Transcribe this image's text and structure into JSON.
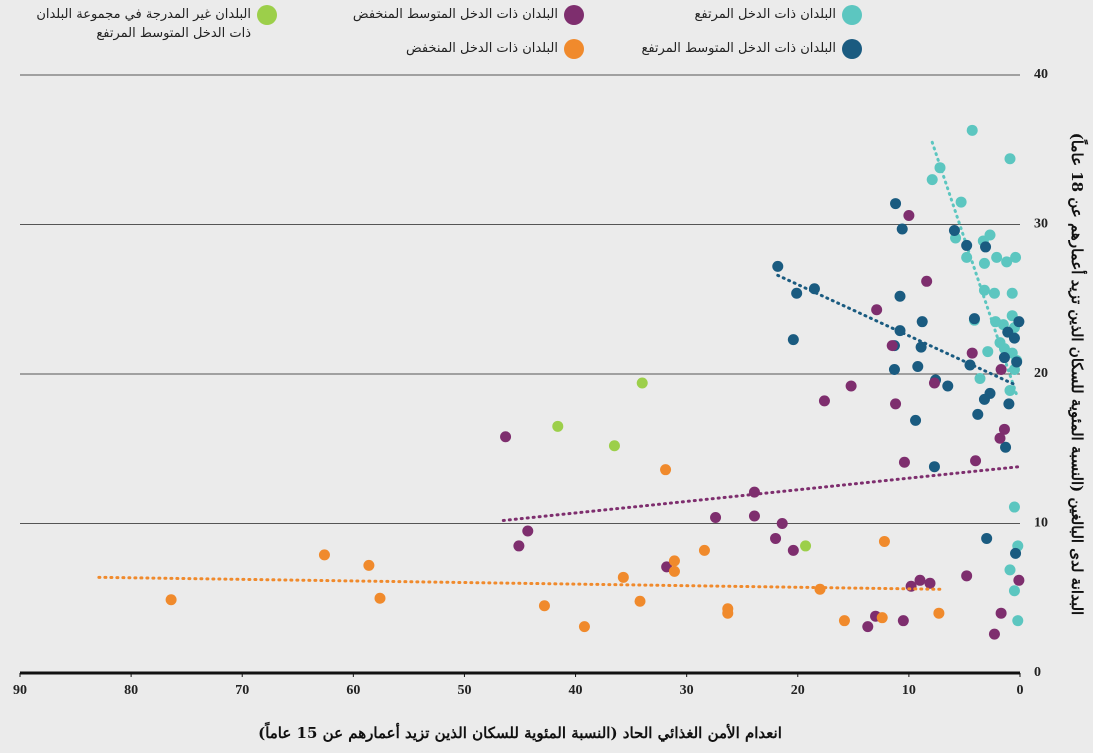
{
  "chart_data": {
    "type": "scatter",
    "xlabel": "انعدام الأمن الغذائي الحاد (النسبة المئوية للسكان الذين تزيد أعمارهم عن 15 عاماً)",
    "ylabel": "البدانة لدى البالغين (النسبة المئوية للسكان الذين تزيد أعمارهم عن 18 عاماً)",
    "xlim": [
      90,
      0
    ],
    "xticks": [
      90,
      80,
      70,
      60,
      50,
      40,
      30,
      20,
      10,
      0
    ],
    "ylim": [
      0,
      40
    ],
    "yticks": [
      0,
      10,
      20,
      30,
      40
    ],
    "grid": true,
    "series": [
      {
        "name": "البلدان ذات الدخل المرتفع",
        "color": "#5cc6c0",
        "x": [
          4.3,
          0.9,
          7.2,
          7.9,
          5.3,
          5.8,
          2.7,
          3.3,
          1.2,
          2.1,
          0.4,
          3.2,
          4.8,
          3.2,
          2.3,
          0.7,
          0.7,
          4.1,
          2.2,
          1.5,
          0.5,
          1.8,
          1.4,
          0.7,
          0.3,
          2.9,
          0.5,
          3.6,
          0.9,
          0.5,
          0.2,
          0.9,
          0.5,
          0.2
        ],
        "y": [
          36.3,
          34.4,
          33.8,
          33.0,
          31.5,
          29.1,
          29.3,
          28.9,
          27.5,
          27.8,
          27.8,
          27.4,
          27.8,
          25.6,
          25.4,
          25.4,
          23.9,
          23.6,
          23.5,
          23.3,
          23.1,
          22.1,
          21.7,
          21.4,
          20.9,
          21.5,
          20.3,
          19.7,
          18.9,
          11.1,
          8.5,
          6.9,
          5.5,
          3.5
        ],
        "trend": {
          "x": [
            7.9,
            0.3
          ],
          "y": [
            35.5,
            18.6
          ]
        }
      },
      {
        "name": "البلدان ذات الدخل المتوسط المرتفع",
        "color": "#1a5b80",
        "x": [
          11.2,
          10.6,
          5.9,
          4.8,
          3.1,
          21.8,
          18.5,
          20.1,
          10.8,
          4.1,
          0.1,
          1.1,
          10.8,
          8.8,
          20.4,
          0.5,
          11.3,
          8.9,
          1.4,
          0.3,
          4.5,
          9.2,
          11.3,
          7.6,
          6.5,
          2.7,
          3.2,
          1.0,
          3.8,
          9.4,
          1.3,
          7.7,
          3.0,
          0.4
        ],
        "y": [
          31.4,
          29.7,
          29.6,
          28.6,
          28.5,
          27.2,
          25.7,
          25.4,
          25.2,
          23.7,
          23.5,
          22.8,
          22.9,
          23.5,
          22.3,
          22.4,
          21.9,
          21.8,
          21.1,
          20.8,
          20.6,
          20.5,
          20.3,
          19.6,
          19.2,
          18.7,
          18.3,
          18.0,
          17.3,
          16.9,
          15.1,
          13.8,
          9.0,
          8.0
        ],
        "trend": {
          "x": [
            21.8,
            0.5
          ],
          "y": [
            26.6,
            19.3
          ]
        }
      },
      {
        "name": "البلدان ذات الدخل المتوسط المنخفض",
        "color": "#7e2e6e",
        "x": [
          10.0,
          8.4,
          12.9,
          11.5,
          4.3,
          1.7,
          7.7,
          15.2,
          17.6,
          11.2,
          1.4,
          1.8,
          46.3,
          10.4,
          4.0,
          23.9,
          23.9,
          27.4,
          21.4,
          44.3,
          45.1,
          22.0,
          20.4,
          31.8,
          4.8,
          0.1,
          9.0,
          8.1,
          9.8,
          1.7,
          13.0,
          10.5,
          13.7,
          2.3
        ],
        "y": [
          30.6,
          26.2,
          24.3,
          21.9,
          21.4,
          20.3,
          19.4,
          19.2,
          18.2,
          18.0,
          16.3,
          15.7,
          15.8,
          14.1,
          14.2,
          12.1,
          10.5,
          10.4,
          10.0,
          9.5,
          8.5,
          9.0,
          8.2,
          7.1,
          6.5,
          6.2,
          6.2,
          6.0,
          5.8,
          4.0,
          3.8,
          3.5,
          3.1,
          2.6
        ],
        "trend": {
          "x": [
            46.5,
            0.1
          ],
          "y": [
            10.2,
            13.8
          ]
        }
      },
      {
        "name": "البلدان ذات الدخل المنخفض",
        "color": "#f08a2c",
        "x": [
          31.9,
          12.2,
          62.6,
          58.6,
          31.1,
          28.4,
          31.1,
          35.7,
          57.6,
          76.4,
          34.2,
          42.8,
          18.0,
          26.3,
          26.3,
          7.3,
          12.4,
          15.8,
          39.2
        ],
        "y": [
          13.6,
          8.8,
          7.9,
          7.2,
          7.5,
          8.2,
          6.8,
          6.4,
          5.0,
          4.9,
          4.8,
          4.5,
          5.6,
          4.3,
          4.0,
          4.0,
          3.7,
          3.5,
          3.1
        ],
        "trend": {
          "x": [
            82.9,
            7.2
          ],
          "y": [
            6.4,
            5.6
          ]
        }
      },
      {
        "name": "البلدان غير المدرجة في مجموعة البلدان ذات الدخل المتوسط المرتفع",
        "color": "#9ccf4a",
        "x": [
          34.0,
          41.6,
          36.5,
          19.3
        ],
        "y": [
          19.4,
          16.5,
          15.2,
          8.5
        ]
      }
    ]
  }
}
